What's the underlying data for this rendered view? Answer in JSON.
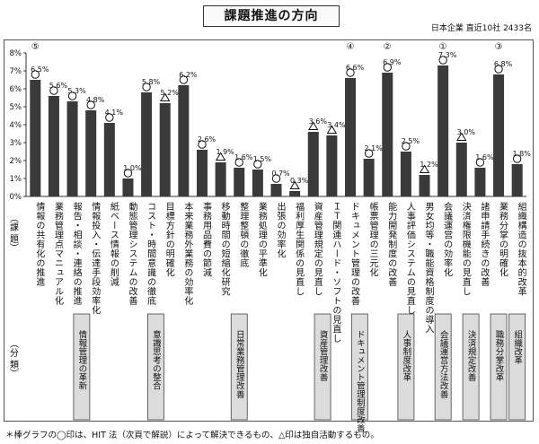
{
  "title": "課題推進の方向",
  "subtitle": "日本企業 直近10社 2433名",
  "section_labels": {
    "kadai": "（課 題）",
    "bunrui": "（分 類）"
  },
  "footnote": "＊棒グラフの◯印は、HIT 法（次頁で解説）によって解決できるもの、△印は独自活動するもの。",
  "chart_data": {
    "type": "bar",
    "title": "課題推進の方向",
    "ylabel": "",
    "ylim": [
      0,
      8
    ],
    "yticks": [
      "0%",
      "1%",
      "2%",
      "3%",
      "4%",
      "5%",
      "6%",
      "7%",
      "8%"
    ],
    "grid": false,
    "bar_color": "#3a3a3a",
    "bars": [
      {
        "category": "情報の共有化の推進",
        "value": 6.5,
        "label": "6.5%",
        "marker": "circle",
        "rank": "⑤"
      },
      {
        "category": "業務管理点マニュアル化",
        "value": 5.6,
        "label": "5.6%",
        "marker": "circle"
      },
      {
        "category": "報告・相談・連絡の推進",
        "value": 5.3,
        "label": "5.3%",
        "marker": "circle"
      },
      {
        "category": "情報投入・伝達手段効率化",
        "value": 4.8,
        "label": "4.8%",
        "marker": "circle"
      },
      {
        "category": "紙ベース情報の削減",
        "value": 4.1,
        "label": "4.1%",
        "marker": "circle"
      },
      {
        "category": "動態管理システムの改善",
        "value": 1.0,
        "label": "1.0%",
        "marker": "circle"
      },
      {
        "category": "コスト・時間意識の徹底",
        "value": 5.8,
        "label": "5.8%",
        "marker": "circle"
      },
      {
        "category": "目標方針の明確化",
        "value": 5.2,
        "label": "5.2%",
        "marker": "triangle"
      },
      {
        "category": "本来業務外業務の効率化",
        "value": 6.2,
        "label": "6.2%",
        "marker": "circle"
      },
      {
        "category": "事務用品費の節減",
        "value": 2.6,
        "label": "2.6%",
        "marker": "circle"
      },
      {
        "category": "移動時間の短縮化研究",
        "value": 1.9,
        "label": "1.9%",
        "marker": "triangle"
      },
      {
        "category": "整理整頓の徹底",
        "value": 1.6,
        "label": "1.6%",
        "marker": "circle"
      },
      {
        "category": "業務処理の平準化",
        "value": 1.5,
        "label": "1.5%",
        "marker": "circle"
      },
      {
        "category": "出張の効率化",
        "value": 0.7,
        "label": "0.7%",
        "marker": "circle"
      },
      {
        "category": "福利厚生関係の見直し",
        "value": 0.3,
        "label": "0.3%",
        "marker": "triangle"
      },
      {
        "category": "資産管理規定の見直し",
        "value": 3.6,
        "label": "3.6%",
        "marker": "triangle"
      },
      {
        "category": "ＩＴ関連ハード・ソフトの見直し",
        "value": 3.4,
        "label": "3.4%",
        "marker": "triangle"
      },
      {
        "category": "ドキュメント管理の改善",
        "value": 6.6,
        "label": "6.6%",
        "marker": "circle",
        "rank": "④"
      },
      {
        "category": "帳票管理の三元化",
        "value": 2.1,
        "label": "2.1%",
        "marker": "circle"
      },
      {
        "category": "能力開発制度の改善",
        "value": 6.9,
        "label": "6.9%",
        "marker": "circle",
        "rank": "②"
      },
      {
        "category": "人事評価システムの見直し",
        "value": 2.5,
        "label": "2.5%",
        "marker": "circle"
      },
      {
        "category": "男女均等・職能資格制度の導入",
        "value": 1.2,
        "label": "1.2%",
        "marker": "triangle"
      },
      {
        "category": "会議運営の効率化",
        "value": 7.3,
        "label": "7.3%",
        "marker": "circle",
        "rank": "①"
      },
      {
        "category": "決済権限機能の見直し",
        "value": 3.0,
        "label": "3.0%",
        "marker": "triangle"
      },
      {
        "category": "諸申請手続きの改善",
        "value": 1.6,
        "label": "1.6%",
        "marker": "circle"
      },
      {
        "category": "業務分掌の明確化",
        "value": 6.8,
        "label": "6.8%",
        "marker": "circle",
        "rank": "③"
      },
      {
        "category": "組織構造の抜本的改革",
        "value": 1.8,
        "label": "1.8%",
        "marker": "circle"
      }
    ],
    "groups": [
      {
        "label": "情報管理の革新",
        "from": 0,
        "to": 5
      },
      {
        "label": "意識思考の整合",
        "from": 6,
        "to": 7
      },
      {
        "label": "日常業務管理改善",
        "from": 8,
        "to": 14
      },
      {
        "label": "資産管理改善",
        "from": 15,
        "to": 16
      },
      {
        "label": "ドキュメント管理制度改善",
        "from": 17,
        "to": 18
      },
      {
        "label": "人事制度改革",
        "from": 19,
        "to": 21
      },
      {
        "label": "会議運営方法改善",
        "from": 22,
        "to": 22
      },
      {
        "label": "決済規定改善",
        "from": 23,
        "to": 24
      },
      {
        "label": "職務分掌改革",
        "from": 25,
        "to": 25
      },
      {
        "label": "組織改革",
        "from": 26,
        "to": 26
      }
    ]
  }
}
